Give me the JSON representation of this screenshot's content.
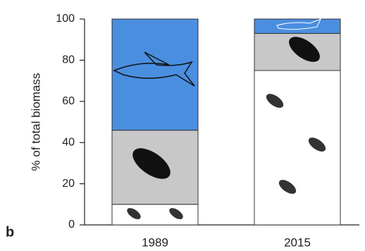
{
  "chart_data": {
    "type": "stacked-bar",
    "panel_label": "b",
    "y_label": "% of total biomass",
    "categories": [
      "1989",
      "2015"
    ],
    "series": [
      {
        "color": "#ffffff",
        "values": [
          10,
          75
        ]
      },
      {
        "color": "#c8c8c8",
        "values": [
          36,
          18
        ]
      },
      {
        "color": "#4a8ee0",
        "values": [
          54,
          7
        ]
      }
    ],
    "ylim": [
      0,
      100
    ],
    "yticks": [
      0,
      20,
      40,
      60,
      80,
      100
    ]
  }
}
